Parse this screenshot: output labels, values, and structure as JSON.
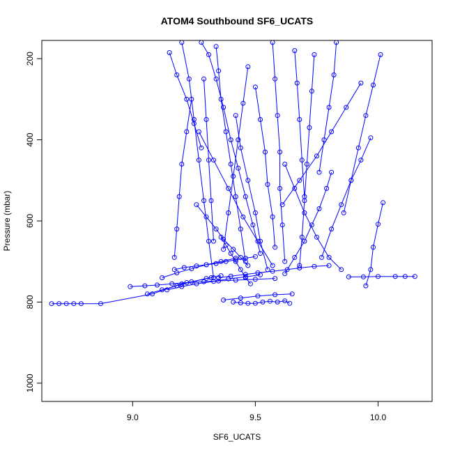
{
  "chart_data": {
    "type": "line",
    "title": "ATOM4 Southbound SF6_UCATS",
    "xlabel": "SF6_UCATS",
    "ylabel": "Pressure (mbar)",
    "xlim": [
      8.63,
      10.22
    ],
    "ylim": [
      1045,
      155
    ],
    "y_reversed": true,
    "x_ticks": [
      9.0,
      9.5,
      10.0
    ],
    "x_tick_labels": [
      "9.0",
      "9.5",
      "10.0"
    ],
    "y_ticks": [
      200,
      400,
      600,
      800,
      1000
    ],
    "y_tick_labels": [
      "200",
      "400",
      "600",
      "800",
      "1000"
    ],
    "grid": false,
    "legend": "none",
    "series_color": "#0000ff",
    "marker": "open-circle",
    "series": [
      {
        "x": [
          8.67,
          8.7,
          8.73,
          8.76,
          8.79,
          8.87,
          9.08,
          9.2,
          9.32
        ],
        "y": [
          804,
          804,
          804,
          804,
          804,
          804,
          780,
          755,
          740
        ]
      },
      {
        "x": [
          8.99,
          9.05,
          9.1,
          9.16,
          9.22,
          9.29,
          9.35,
          9.42,
          9.5,
          9.58
        ],
        "y": [
          762,
          760,
          758,
          755,
          752,
          750,
          748,
          746,
          744,
          742
        ]
      },
      {
        "x": [
          9.35,
          9.4,
          9.46,
          9.51,
          9.57,
          9.63,
          9.68,
          9.74,
          9.8
        ],
        "y": [
          740,
          736,
          732,
          728,
          724,
          720,
          716,
          712,
          710
        ]
      },
      {
        "x": [
          9.88,
          9.94,
          10.0,
          10.07,
          10.11,
          10.15
        ],
        "y": [
          738,
          738,
          737,
          737,
          737,
          737
        ]
      },
      {
        "x": [
          9.14,
          9.2,
          9.26,
          9.33,
          9.39,
          9.46,
          9.52
        ],
        "y": [
          770,
          762,
          755,
          749,
          743,
          738,
          733
        ]
      },
      {
        "x": [
          9.41,
          9.44,
          9.47,
          9.5,
          9.53,
          9.56,
          9.59,
          9.62,
          9.64
        ],
        "y": [
          800,
          802,
          803,
          803,
          800,
          798,
          800,
          797,
          803
        ]
      },
      {
        "x": [
          9.17,
          9.21,
          9.26,
          9.3,
          9.34,
          9.38,
          9.42,
          9.46,
          9.5
        ],
        "y": [
          720,
          715,
          711,
          708,
          705,
          700,
          696,
          692,
          688
        ]
      },
      {
        "x": [
          9.28,
          9.31,
          9.34,
          9.37,
          9.4,
          9.43,
          9.46,
          9.49,
          9.52
        ],
        "y": [
          160,
          190,
          250,
          320,
          400,
          470,
          540,
          610,
          680
        ]
      },
      {
        "x": [
          9.34,
          9.35,
          9.36,
          9.38,
          9.4,
          9.42,
          9.44,
          9.46
        ],
        "y": [
          170,
          230,
          300,
          380,
          460,
          540,
          620,
          700
        ]
      },
      {
        "x": [
          9.2,
          9.23,
          9.25,
          9.27,
          9.29,
          9.31,
          9.33
        ],
        "y": [
          160,
          250,
          350,
          450,
          550,
          650,
          740
        ]
      },
      {
        "x": [
          9.57,
          9.58,
          9.59,
          9.6,
          9.6,
          9.61,
          9.62
        ],
        "y": [
          160,
          250,
          340,
          430,
          520,
          610,
          700
        ]
      },
      {
        "x": [
          9.74,
          9.73,
          9.72,
          9.71,
          9.7,
          9.69,
          9.68
        ],
        "y": [
          190,
          280,
          370,
          460,
          550,
          640,
          710
        ]
      },
      {
        "x": [
          9.97,
          9.93,
          9.89,
          9.85,
          9.81,
          9.77
        ],
        "y": [
          395,
          450,
          500,
          560,
          620,
          690
        ]
      },
      {
        "x": [
          10.01,
          9.98,
          9.95,
          9.92,
          9.89,
          9.86
        ],
        "y": [
          190,
          265,
          340,
          420,
          500,
          580
        ]
      },
      {
        "x": [
          10.02,
          10.0,
          9.98,
          9.97,
          9.95
        ],
        "y": [
          555,
          608,
          665,
          720,
          760
        ]
      },
      {
        "x": [
          9.47,
          9.45,
          9.43,
          9.41,
          9.39,
          9.37
        ],
        "y": [
          220,
          310,
          400,
          490,
          580,
          670
        ]
      },
      {
        "x": [
          9.81,
          9.79,
          9.76,
          9.73,
          9.7,
          9.66,
          9.62
        ],
        "y": [
          480,
          520,
          570,
          610,
          650,
          690,
          730
        ]
      },
      {
        "x": [
          9.36,
          9.38,
          9.4,
          9.42,
          9.44,
          9.46,
          9.48
        ],
        "y": [
          640,
          660,
          680,
          700,
          720,
          740,
          755
        ]
      },
      {
        "x": [
          9.24,
          9.22,
          9.2,
          9.19,
          9.18,
          9.17
        ],
        "y": [
          300,
          380,
          460,
          540,
          620,
          690
        ]
      },
      {
        "x": [
          9.5,
          9.52,
          9.54,
          9.55,
          9.57,
          9.58
        ],
        "y": [
          270,
          350,
          430,
          510,
          590,
          665
        ]
      },
      {
        "x": [
          9.62,
          9.66,
          9.7,
          9.75,
          9.8,
          9.85
        ],
        "y": [
          460,
          520,
          580,
          640,
          690,
          720
        ]
      },
      {
        "x": [
          9.83,
          9.82,
          9.8,
          9.78,
          9.76
        ],
        "y": [
          160,
          240,
          320,
          400,
          480
        ]
      },
      {
        "x": [
          9.42,
          9.44,
          9.47,
          9.5,
          9.52,
          9.55
        ],
        "y": [
          340,
          420,
          500,
          580,
          650,
          720
        ]
      },
      {
        "x": [
          9.29,
          9.3,
          9.31,
          9.32,
          9.33
        ],
        "y": [
          250,
          350,
          450,
          550,
          650
        ]
      },
      {
        "x": [
          9.66,
          9.67,
          9.68,
          9.69,
          9.7
        ],
        "y": [
          180,
          260,
          350,
          450,
          540
        ]
      },
      {
        "x": [
          9.27,
          9.33,
          9.39,
          9.45,
          9.51,
          9.57
        ],
        "y": [
          380,
          450,
          520,
          590,
          650,
          710
        ]
      },
      {
        "x": [
          9.26,
          9.3,
          9.34,
          9.37,
          9.41,
          9.44,
          9.47
        ],
        "y": [
          560,
          590,
          620,
          645,
          670,
          690,
          710
        ]
      },
      {
        "x": [
          9.06,
          9.12,
          9.18,
          9.24,
          9.3,
          9.36
        ],
        "y": [
          780,
          770,
          760,
          750,
          742,
          735
        ]
      },
      {
        "x": [
          9.37,
          9.44,
          9.51,
          9.58,
          9.65
        ],
        "y": [
          795,
          790,
          785,
          782,
          780
        ]
      },
      {
        "x": [
          9.12,
          9.18,
          9.24,
          9.3,
          9.36,
          9.42
        ],
        "y": [
          740,
          728,
          718,
          708,
          700,
          692
        ]
      },
      {
        "x": [
          9.93,
          9.87,
          9.81,
          9.75,
          9.68,
          9.61
        ],
        "y": [
          260,
          320,
          380,
          440,
          500,
          560
        ]
      },
      {
        "x": [
          9.15,
          9.18,
          9.22,
          9.25,
          9.28
        ],
        "y": [
          185,
          240,
          300,
          360,
          420
        ]
      }
    ]
  }
}
